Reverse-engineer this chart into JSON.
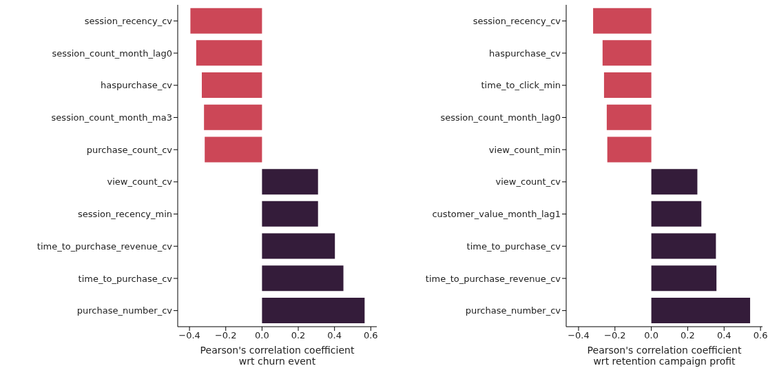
{
  "chart_data": [
    {
      "type": "bar",
      "orientation": "horizontal",
      "xlabel": "Pearson's correlation coefficient\nwrt churn event",
      "categories": [
        "session_recency_cv",
        "session_count_month_lag0",
        "haspurchase_cv",
        "session_count_month_ma3",
        "purchase_count_cv",
        "view_count_cv",
        "session_recency_min",
        "time_to_purchase_revenue_cv",
        "time_to_purchase_cv",
        "purchase_number_cv"
      ],
      "values": [
        -0.395,
        -0.363,
        -0.332,
        -0.32,
        -0.316,
        0.309,
        0.309,
        0.402,
        0.449,
        0.566
      ],
      "colors": [
        "#cc4757",
        "#cc4757",
        "#cc4757",
        "#cc4757",
        "#cc4757",
        "#341c3a",
        "#341c3a",
        "#341c3a",
        "#341c3a",
        "#341c3a"
      ],
      "xlim": [
        -0.465,
        0.633
      ],
      "xticks": [
        {
          "value": -0.4,
          "label": "−0.4"
        },
        {
          "value": -0.2,
          "label": "−0.2"
        },
        {
          "value": 0,
          "label": "0.0"
        },
        {
          "value": 0.2,
          "label": "0.2"
        },
        {
          "value": 0.4,
          "label": "0.4"
        },
        {
          "value": 0.6,
          "label": "0.6"
        }
      ]
    },
    {
      "type": "bar",
      "orientation": "horizontal",
      "xlabel": "Pearson's correlation coefficient\nwrt retention campaign profit",
      "categories": [
        "session_recency_cv",
        "haspurchase_cv",
        "time_to_click_min",
        "session_count_month_lag0",
        "view_count_min",
        "view_count_cv",
        "customer_value_month_lag1",
        "time_to_purchase_cv",
        "time_to_purchase_revenue_cv",
        "purchase_number_cv"
      ],
      "values": [
        -0.32,
        -0.268,
        -0.26,
        -0.245,
        -0.242,
        0.253,
        0.275,
        0.355,
        0.358,
        0.543
      ],
      "colors": [
        "#cc4757",
        "#cc4757",
        "#cc4757",
        "#cc4757",
        "#cc4757",
        "#341c3a",
        "#341c3a",
        "#341c3a",
        "#341c3a",
        "#341c3a"
      ],
      "xlim": [
        -0.468,
        0.611
      ],
      "xticks": [
        {
          "value": -0.4,
          "label": "−0.4"
        },
        {
          "value": -0.2,
          "label": "−0.2"
        },
        {
          "value": 0,
          "label": "0.0"
        },
        {
          "value": 0.2,
          "label": "0.2"
        },
        {
          "value": 0.4,
          "label": "0.4"
        },
        {
          "value": 0.6,
          "label": "0.6"
        }
      ]
    }
  ]
}
